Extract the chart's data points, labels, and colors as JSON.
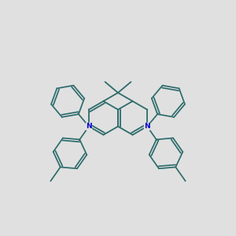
{
  "bg_color": "#e0e0e0",
  "bond_color": "#2d6b6b",
  "N_color": "#0000cc",
  "linewidth": 1.3,
  "figsize": [
    3.0,
    3.0
  ],
  "dpi": 100
}
